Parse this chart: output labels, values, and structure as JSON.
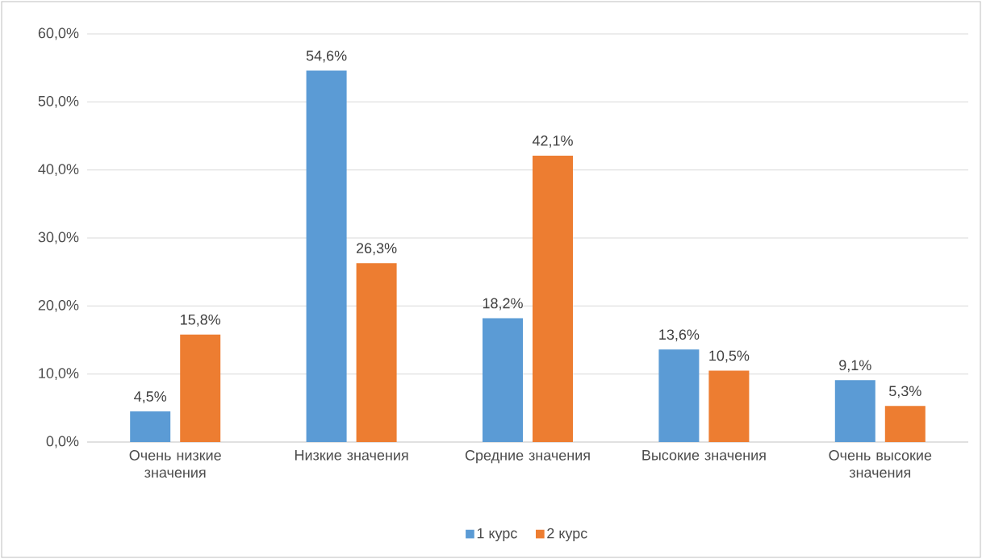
{
  "chart_data": {
    "type": "bar",
    "categories": [
      "Очень низкие значения",
      "Низкие значения",
      "Средние значения",
      "Высокие значения",
      "Очень высокие значения"
    ],
    "series": [
      {
        "name": "1 курс",
        "color": "#5b9bd5",
        "values": [
          4.5,
          54.6,
          18.2,
          13.6,
          9.1
        ],
        "value_labels": [
          "4,5%",
          "54,6%",
          "18,2%",
          "13,6%",
          "9,1%"
        ]
      },
      {
        "name": "2 курс",
        "color": "#ed7d31",
        "values": [
          15.8,
          26.3,
          42.1,
          10.5,
          5.3
        ],
        "value_labels": [
          "15,8%",
          "26,3%",
          "42,1%",
          "10,5%",
          "5,3%"
        ]
      }
    ],
    "ylim": [
      0,
      60
    ],
    "yticks": [
      {
        "value": 0,
        "label": "0,0%"
      },
      {
        "value": 10,
        "label": "10,0%"
      },
      {
        "value": 20,
        "label": "20,0%"
      },
      {
        "value": 30,
        "label": "30,0%"
      },
      {
        "value": 40,
        "label": "40,0%"
      },
      {
        "value": 50,
        "label": "50,0%"
      },
      {
        "value": 60,
        "label": "60,0%"
      }
    ],
    "grid": "y",
    "legend": "bottom"
  }
}
